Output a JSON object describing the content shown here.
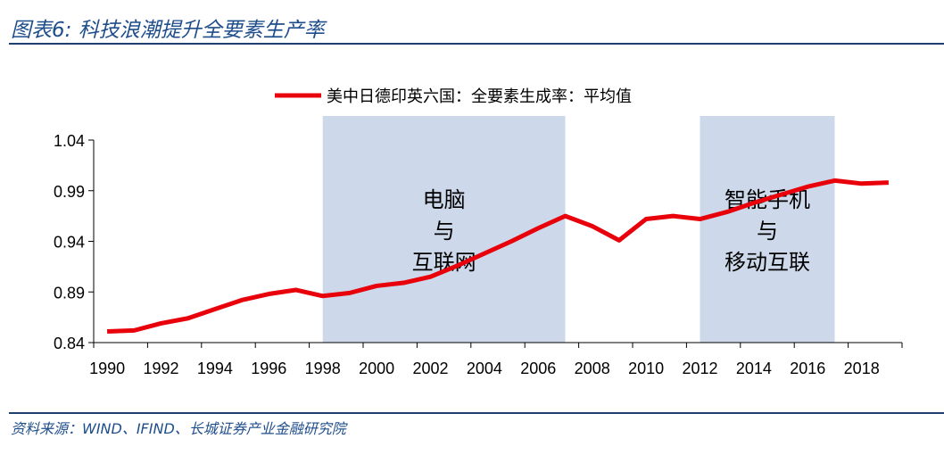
{
  "title": "图表6:  科技浪潮提升全要素生产率",
  "source": "资料来源：WIND、IFIND、长城证券产业金融研究院",
  "chart_data": {
    "type": "line",
    "title": "",
    "xlabel": "",
    "ylabel": "",
    "ylim": [
      0.84,
      1.04
    ],
    "yticks": [
      "0.84",
      "0.89",
      "0.94",
      "0.99",
      "1.04"
    ],
    "xtick_labels": [
      "1990",
      "1992",
      "1994",
      "1996",
      "1998",
      "2000",
      "2002",
      "2004",
      "2006",
      "2008",
      "2010",
      "2012",
      "2014",
      "2016",
      "2018"
    ],
    "legend_position": "top",
    "grid": false,
    "x": [
      1990,
      1991,
      1992,
      1993,
      1994,
      1995,
      1996,
      1997,
      1998,
      1999,
      2000,
      2001,
      2002,
      2003,
      2004,
      2005,
      2006,
      2007,
      2008,
      2009,
      2010,
      2011,
      2012,
      2013,
      2014,
      2015,
      2016,
      2017,
      2018,
      2019
    ],
    "series": [
      {
        "name": "美中日德印英六国：全要素生成率：平均值",
        "color": "#e8000b",
        "values": [
          0.851,
          0.852,
          0.859,
          0.864,
          0.873,
          0.882,
          0.888,
          0.892,
          0.886,
          0.889,
          0.896,
          0.899,
          0.905,
          0.916,
          0.928,
          0.94,
          0.953,
          0.965,
          0.955,
          0.941,
          0.962,
          0.965,
          0.962,
          0.969,
          0.978,
          0.986,
          0.994,
          1.0,
          0.997,
          0.998
        ]
      }
    ],
    "shaded_regions": [
      {
        "from": 1998,
        "to": 2007,
        "label_lines": [
          "电脑",
          "与",
          "互联网"
        ],
        "color": "#cdd9ea"
      },
      {
        "from": 2012,
        "to": 2017,
        "label_lines": [
          "智能手机",
          "与",
          "移动互联"
        ],
        "color": "#cdd9ea"
      }
    ]
  }
}
